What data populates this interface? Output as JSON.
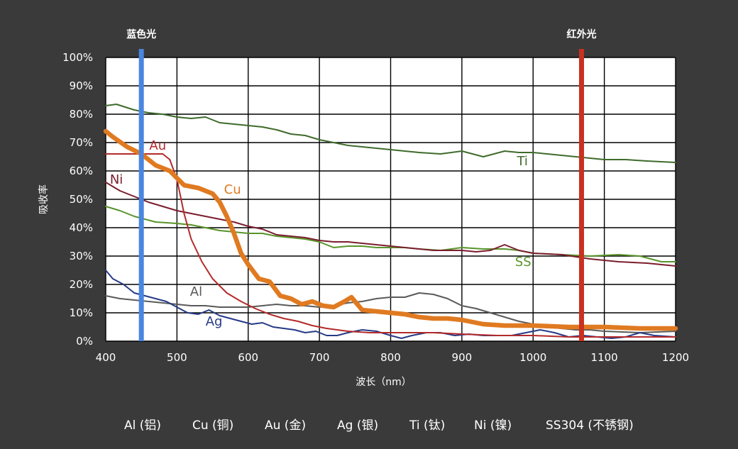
{
  "chart_data": {
    "type": "line",
    "title": "",
    "xlabel": "波长（nm）",
    "ylabel": "吸收率",
    "xlim": [
      400,
      1200
    ],
    "ylim": [
      0,
      100
    ],
    "x_ticks": [
      "400",
      "500",
      "600",
      "700",
      "800",
      "900",
      "1000",
      "1100",
      "1200"
    ],
    "y_ticks": [
      "0%",
      "10%",
      "20%",
      "30%",
      "40%",
      "50%",
      "60%",
      "70%",
      "80%",
      "90%",
      "100%"
    ],
    "grid": true,
    "colors": {
      "Ti": "#3f6b2b",
      "SS": "#58942a",
      "Au": "#b42a2a",
      "Cu": "#e07a21",
      "Ni": "#7b1d2e",
      "Al": "#5a5a5a",
      "Ag": "#263a86",
      "blue_line": "#4a86e0",
      "red_line": "#c8321e"
    },
    "vertical_lines": [
      {
        "label": "蓝色光",
        "x": 450,
        "color": "#4a86e0"
      },
      {
        "label": "红外光",
        "x": 1068,
        "color": "#c8321e"
      }
    ],
    "series": [
      {
        "name": "Ti",
        "x": [
          400,
          415,
          440,
          460,
          480,
          500,
          520,
          540,
          560,
          580,
          600,
          620,
          640,
          660,
          680,
          700,
          720,
          740,
          760,
          780,
          800,
          820,
          840,
          870,
          900,
          930,
          960,
          980,
          1000,
          1020,
          1040,
          1060,
          1080,
          1100,
          1130,
          1160,
          1200
        ],
        "values": [
          83,
          83.5,
          81.5,
          80.5,
          80,
          79,
          78.5,
          79,
          77,
          76.5,
          76,
          75.5,
          74.5,
          73,
          72.5,
          71,
          70,
          69,
          68.5,
          68,
          67.5,
          67,
          66.5,
          66,
          67,
          65,
          67,
          66.5,
          66.5,
          66,
          65.5,
          65,
          64.5,
          64,
          64,
          63.5,
          63
        ]
      },
      {
        "name": "SS",
        "x": [
          400,
          420,
          440,
          470,
          500,
          520,
          540,
          560,
          580,
          600,
          620,
          640,
          660,
          680,
          700,
          720,
          740,
          760,
          780,
          800,
          820,
          840,
          870,
          900,
          930,
          960,
          980,
          1000,
          1040,
          1080,
          1120,
          1150,
          1180,
          1200
        ],
        "values": [
          47.5,
          46,
          44,
          42,
          41.5,
          41,
          40,
          39,
          38.5,
          38,
          38,
          37,
          36.5,
          36,
          35,
          33,
          33.5,
          33.5,
          33,
          33,
          33,
          32.5,
          32,
          33,
          32.5,
          32.5,
          32,
          31,
          30.5,
          30,
          30.5,
          30,
          28,
          28
        ]
      },
      {
        "name": "Au",
        "x": [
          400,
          420,
          440,
          460,
          480,
          490,
          500,
          510,
          520,
          535,
          550,
          570,
          590,
          610,
          630,
          650,
          670,
          690,
          710,
          740,
          770,
          800,
          830,
          860,
          900,
          950,
          1000,
          1050,
          1100,
          1150,
          1200
        ],
        "values": [
          66,
          66,
          66,
          66,
          66,
          64,
          57,
          45,
          36,
          28,
          22,
          17,
          14,
          11.5,
          9.5,
          8,
          7,
          5.5,
          4.5,
          3.5,
          3,
          3,
          3,
          3,
          2.5,
          2,
          2,
          1.5,
          1.5,
          1.5,
          1.5
        ]
      },
      {
        "name": "Cu",
        "x": [
          400,
          410,
          430,
          450,
          470,
          490,
          510,
          530,
          550,
          560,
          570,
          580,
          590,
          600,
          615,
          630,
          645,
          660,
          675,
          690,
          705,
          720,
          735,
          745,
          760,
          780,
          800,
          820,
          840,
          860,
          880,
          900,
          930,
          960,
          1000,
          1050,
          1100,
          1150,
          1200
        ],
        "values": [
          74,
          72,
          68.5,
          66,
          62,
          60,
          55,
          54,
          52,
          49,
          44,
          38,
          31,
          27,
          22,
          21,
          16,
          15,
          13,
          14,
          12.5,
          12,
          14,
          15.5,
          11,
          10.5,
          10,
          9.5,
          8.5,
          8,
          8,
          7.5,
          6,
          5.5,
          5.5,
          5,
          5,
          4.5,
          4.5
        ]
      },
      {
        "name": "Ni",
        "x": [
          400,
          420,
          440,
          460,
          480,
          500,
          520,
          540,
          560,
          580,
          600,
          620,
          640,
          660,
          680,
          700,
          720,
          740,
          760,
          780,
          800,
          820,
          840,
          860,
          880,
          900,
          920,
          940,
          960,
          980,
          1000,
          1040,
          1080,
          1120,
          1160,
          1200
        ],
        "values": [
          56,
          53,
          51,
          49,
          47.5,
          46,
          45,
          44,
          43,
          42,
          40.5,
          39.5,
          37.5,
          37,
          36.5,
          35.5,
          35,
          35,
          34.5,
          34,
          33.5,
          33,
          32.5,
          32,
          32,
          32,
          31.5,
          32,
          34,
          32,
          31,
          30.5,
          29,
          28,
          27.5,
          26.5
        ]
      },
      {
        "name": "Al",
        "x": [
          400,
          420,
          440,
          460,
          480,
          500,
          520,
          540,
          560,
          580,
          600,
          620,
          640,
          660,
          680,
          700,
          720,
          740,
          760,
          780,
          800,
          820,
          840,
          860,
          880,
          900,
          920,
          940,
          960,
          980,
          1000,
          1020,
          1040,
          1060,
          1080,
          1100,
          1150,
          1200
        ],
        "values": [
          16,
          15,
          14.5,
          14,
          13.5,
          13,
          12.5,
          12.5,
          12,
          12,
          12,
          12.5,
          13,
          12.5,
          12.5,
          12,
          12.5,
          13.5,
          14,
          15,
          15.5,
          15.5,
          17,
          16.5,
          15,
          12.5,
          11.5,
          10,
          8.5,
          7,
          6,
          5,
          4.5,
          4,
          4,
          3.5,
          3,
          3.5
        ]
      },
      {
        "name": "Ag",
        "x": [
          400,
          410,
          425,
          440,
          455,
          470,
          485,
          500,
          515,
          530,
          545,
          560,
          575,
          590,
          605,
          620,
          635,
          650,
          665,
          680,
          695,
          710,
          725,
          740,
          760,
          780,
          800,
          815,
          830,
          850,
          870,
          890,
          910,
          930,
          950,
          970,
          990,
          1010,
          1030,
          1050,
          1070,
          1090,
          1110,
          1130,
          1150,
          1170,
          1200
        ],
        "values": [
          25,
          22,
          20,
          17,
          16,
          15,
          14,
          12,
          10,
          9.5,
          11,
          9,
          8,
          7,
          6,
          6.5,
          5,
          4.5,
          4,
          3,
          3.5,
          2,
          2,
          3,
          4,
          3.5,
          2,
          1,
          2,
          3,
          3,
          2,
          2.5,
          2,
          2,
          2,
          3,
          4,
          3,
          1.5,
          2,
          1.5,
          1,
          1.5,
          3,
          2,
          1.5
        ]
      }
    ],
    "series_labels": [
      "Au",
      "Ni",
      "Cu",
      "Ti",
      "SS",
      "Al",
      "Ag"
    ],
    "legend_placement": "bottom"
  },
  "legend_text": [
    "Al (铝)",
    "Cu (铜)",
    "Au (金)",
    "Ag (银)",
    "Ti (钛)",
    "Ni (镍)",
    "SS304 (不锈钢)"
  ]
}
